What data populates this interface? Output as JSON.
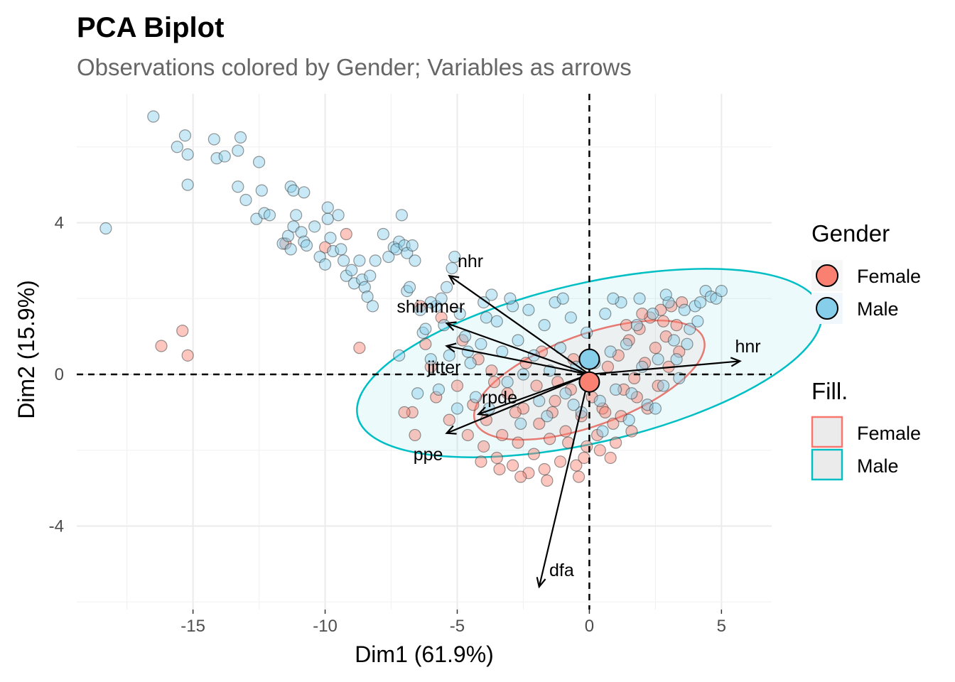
{
  "chart_data": {
    "type": "scatter",
    "title": "PCA Biplot",
    "subtitle": "Observations colored by Gender; Variables as arrows",
    "xlabel": "Dim1 (61.9%)",
    "ylabel": "Dim2 (15.9%)",
    "xlim": [
      -19.4,
      6.9
    ],
    "ylim": [
      -6.2,
      7.4
    ],
    "x_ticks": [
      -15,
      -10,
      -5,
      0,
      5
    ],
    "x_tick_labels": [
      "-15",
      "-10",
      "-5",
      "0",
      "5"
    ],
    "y_ticks": [
      -4,
      0,
      4
    ],
    "y_tick_labels": [
      "-4",
      "0",
      "4"
    ],
    "grid": true,
    "reference_lines": {
      "x": 0,
      "y": 0,
      "style": "dashed"
    },
    "colors": {
      "Female": "#F8766D",
      "Male": "#00BFC4",
      "Female_point": "#FA8072",
      "Male_point": "#87CEEB"
    },
    "series": [
      {
        "name": "Female",
        "points": [
          [
            -16.2,
            0.75
          ],
          [
            -15.4,
            1.15
          ],
          [
            -15.2,
            0.5
          ],
          [
            -11.5,
            3.45
          ],
          [
            -10.0,
            3.35
          ],
          [
            -9.2,
            3.7
          ],
          [
            -8.7,
            0.7
          ],
          [
            -6.7,
            -1.0
          ],
          [
            -6.4,
            1.8
          ],
          [
            -6.2,
            0.8
          ],
          [
            -6.0,
            0.2
          ],
          [
            -5.8,
            -0.6
          ],
          [
            -5.6,
            1.5
          ],
          [
            -5.3,
            -1.2
          ],
          [
            -5.0,
            -0.3
          ],
          [
            -4.8,
            0.9
          ],
          [
            -4.6,
            -1.6
          ],
          [
            -4.4,
            -0.8
          ],
          [
            -4.2,
            0.4
          ],
          [
            -4.0,
            -1.9
          ],
          [
            -3.9,
            -1.2
          ],
          [
            -3.7,
            0.1
          ],
          [
            -3.5,
            -2.2
          ],
          [
            -3.3,
            -1.6
          ],
          [
            -3.1,
            -0.5
          ],
          [
            -2.9,
            -2.4
          ],
          [
            -2.7,
            -1.8
          ],
          [
            -2.5,
            -0.9
          ],
          [
            -2.3,
            -2.6
          ],
          [
            -2.1,
            -2.1
          ],
          [
            -1.9,
            -1.3
          ],
          [
            -1.7,
            -2.5
          ],
          [
            -1.5,
            -1.7
          ],
          [
            -1.3,
            -0.7
          ],
          [
            -1.1,
            -2.3
          ],
          [
            -0.9,
            -1.5
          ],
          [
            -0.7,
            -0.4
          ],
          [
            -0.5,
            -2.4
          ],
          [
            -0.3,
            -1.1
          ],
          [
            -0.1,
            -1.9
          ],
          [
            0.1,
            -0.6
          ],
          [
            0.3,
            -1.6
          ],
          [
            0.5,
            -0.9
          ],
          [
            0.7,
            0.2
          ],
          [
            0.9,
            -1.3
          ],
          [
            1.1,
            0.5
          ],
          [
            1.3,
            -0.4
          ],
          [
            1.5,
            0.9
          ],
          [
            1.7,
            -0.1
          ],
          [
            1.9,
            1.2
          ],
          [
            2.1,
            0.3
          ],
          [
            2.3,
            1.5
          ],
          [
            2.5,
            0.7
          ],
          [
            2.7,
            1.7
          ],
          [
            2.9,
            1.0
          ],
          [
            3.1,
            1.8
          ],
          [
            3.3,
            1.3
          ],
          [
            3.5,
            1.9
          ],
          [
            -6.6,
            -1.6
          ],
          [
            -7.0,
            -1.0
          ],
          [
            -2.4,
            0.3
          ],
          [
            -1.8,
            0.6
          ],
          [
            -1.2,
            -0.2
          ],
          [
            -0.6,
            0.4
          ],
          [
            0.0,
            -0.3
          ],
          [
            0.6,
            -1.0
          ],
          [
            1.2,
            -1.1
          ],
          [
            1.8,
            -0.6
          ],
          [
            -3.6,
            -0.2
          ],
          [
            -2.8,
            -1.0
          ],
          [
            -2.0,
            -0.3
          ],
          [
            -1.4,
            -1.0
          ],
          [
            -0.8,
            -1.8
          ],
          [
            -0.2,
            -2.2
          ],
          [
            0.4,
            -2.0
          ],
          [
            1.0,
            -1.8
          ],
          [
            1.6,
            -1.5
          ],
          [
            2.2,
            -0.9
          ],
          [
            -4.1,
            -2.3
          ],
          [
            -3.4,
            -2.5
          ],
          [
            -2.6,
            -2.7
          ],
          [
            -1.6,
            -2.8
          ],
          [
            -0.4,
            -2.7
          ],
          [
            0.8,
            -2.2
          ],
          [
            2.6,
            -0.3
          ],
          [
            3.0,
            0.2
          ],
          [
            3.4,
            0.6
          ],
          [
            2.8,
            1.4
          ],
          [
            2.0,
            1.6
          ],
          [
            1.4,
            1.3
          ]
        ]
      },
      {
        "name": "Male",
        "points": [
          [
            -18.3,
            3.85
          ],
          [
            -16.5,
            6.8
          ],
          [
            -15.6,
            6.0
          ],
          [
            -15.3,
            6.3
          ],
          [
            -15.2,
            5.8
          ],
          [
            -15.2,
            5.0
          ],
          [
            -14.2,
            6.2
          ],
          [
            -14.1,
            5.7
          ],
          [
            -13.8,
            5.75
          ],
          [
            -13.2,
            6.25
          ],
          [
            -13.3,
            5.9
          ],
          [
            -13.3,
            4.95
          ],
          [
            -13.0,
            4.6
          ],
          [
            -12.5,
            5.6
          ],
          [
            -12.4,
            4.85
          ],
          [
            -12.6,
            4.1
          ],
          [
            -12.3,
            4.25
          ],
          [
            -12.1,
            4.2
          ],
          [
            -11.6,
            3.45
          ],
          [
            -11.4,
            3.65
          ],
          [
            -11.3,
            3.3
          ],
          [
            -11.2,
            3.9
          ],
          [
            -11.1,
            4.2
          ],
          [
            -11.3,
            4.95
          ],
          [
            -11.2,
            4.85
          ],
          [
            -10.9,
            3.75
          ],
          [
            -10.8,
            3.5
          ],
          [
            -10.7,
            3.4
          ],
          [
            -10.8,
            4.8
          ],
          [
            -10.4,
            3.9
          ],
          [
            -10.2,
            3.1
          ],
          [
            -10.0,
            2.9
          ],
          [
            -9.9,
            4.1
          ],
          [
            -9.8,
            3.6
          ],
          [
            -9.7,
            3.25
          ],
          [
            -9.9,
            4.4
          ],
          [
            -9.5,
            4.2
          ],
          [
            -9.4,
            3.3
          ],
          [
            -9.3,
            3.0
          ],
          [
            -9.2,
            2.6
          ],
          [
            -9.0,
            2.75
          ],
          [
            -8.9,
            2.4
          ],
          [
            -8.7,
            3.0
          ],
          [
            -8.6,
            2.5
          ],
          [
            -8.5,
            2.3
          ],
          [
            -8.4,
            2.05
          ],
          [
            -8.3,
            2.6
          ],
          [
            -8.2,
            1.8
          ],
          [
            -8.1,
            3.0
          ],
          [
            -7.8,
            3.7
          ],
          [
            -7.6,
            3.1
          ],
          [
            -7.4,
            3.35
          ],
          [
            -7.2,
            3.5
          ],
          [
            -7.3,
            3.3
          ],
          [
            -7.0,
            3.4
          ],
          [
            -7.1,
            4.2
          ],
          [
            -6.9,
            3.2
          ],
          [
            -6.7,
            3.4
          ],
          [
            -6.6,
            3.0
          ],
          [
            -6.9,
            2.2
          ],
          [
            -6.8,
            2.3
          ],
          [
            -6.4,
            1.7
          ],
          [
            -6.3,
            1.1
          ],
          [
            -6.2,
            1.2
          ],
          [
            -6.0,
            0.4
          ],
          [
            -5.8,
            1.8
          ],
          [
            -5.6,
            2.0
          ],
          [
            -5.4,
            2.3
          ],
          [
            -5.2,
            2.8
          ],
          [
            -5.1,
            3.1
          ],
          [
            -4.9,
            1.6
          ],
          [
            -4.7,
            1.0
          ],
          [
            -4.5,
            0.3
          ],
          [
            -4.3,
            -0.6
          ],
          [
            -4.1,
            0.8
          ],
          [
            -3.9,
            1.5
          ],
          [
            -3.7,
            2.1
          ],
          [
            -3.5,
            1.4
          ],
          [
            -3.3,
            0.6
          ],
          [
            -3.1,
            -0.2
          ],
          [
            -2.9,
            1.8
          ],
          [
            -2.7,
            0.9
          ],
          [
            -2.5,
            0.0
          ],
          [
            -2.3,
            1.7
          ],
          [
            -2.1,
            0.5
          ],
          [
            -1.9,
            -0.7
          ],
          [
            -1.7,
            1.3
          ],
          [
            -1.5,
            0.1
          ],
          [
            -1.3,
            1.9
          ],
          [
            -1.1,
            0.7
          ],
          [
            -0.9,
            -0.5
          ],
          [
            -0.7,
            1.5
          ],
          [
            -0.5,
            0.2
          ],
          [
            -0.3,
            -1.0
          ],
          [
            -0.1,
            1.1
          ],
          [
            0.2,
            0.3
          ],
          [
            0.4,
            -0.7
          ],
          [
            0.6,
            1.6
          ],
          [
            0.8,
            0.6
          ],
          [
            1.0,
            -0.4
          ],
          [
            1.2,
            1.9
          ],
          [
            1.4,
            0.8
          ],
          [
            1.6,
            -0.5
          ],
          [
            1.8,
            1.3
          ],
          [
            2.0,
            0.2
          ],
          [
            2.2,
            -0.8
          ],
          [
            2.4,
            1.6
          ],
          [
            2.6,
            0.4
          ],
          [
            2.8,
            -0.3
          ],
          [
            3.0,
            1.9
          ],
          [
            3.2,
            0.9
          ],
          [
            3.4,
            -0.1
          ],
          [
            3.6,
            1.7
          ],
          [
            3.8,
            1.2
          ],
          [
            4.0,
            1.8
          ],
          [
            4.2,
            1.9
          ],
          [
            4.4,
            2.2
          ],
          [
            4.6,
            2.05
          ],
          [
            4.8,
            2.0
          ],
          [
            5.0,
            2.2
          ],
          [
            -7.2,
            0.5
          ],
          [
            -6.5,
            -0.5
          ],
          [
            -5.7,
            -0.4
          ],
          [
            -5.0,
            -0.9
          ],
          [
            -4.6,
            0.6
          ],
          [
            -3.8,
            -0.9
          ],
          [
            -2.6,
            -1.3
          ],
          [
            -1.6,
            -1.1
          ],
          [
            -0.6,
            -0.8
          ],
          [
            0.5,
            -1.5
          ],
          [
            1.5,
            -1.2
          ],
          [
            2.5,
            -0.9
          ],
          [
            -6.0,
            1.9
          ],
          [
            -5.5,
            1.3
          ],
          [
            -5.3,
            0.5
          ],
          [
            -4.0,
            1.9
          ],
          [
            -3.0,
            2.0
          ],
          [
            0.9,
            2.0
          ],
          [
            1.9,
            2.0
          ],
          [
            2.9,
            2.1
          ],
          [
            3.3,
            0.4
          ],
          [
            3.7,
            0.8
          ],
          [
            4.1,
            1.4
          ],
          [
            -1.0,
            2.0
          ]
        ]
      }
    ],
    "centroids": [
      {
        "name": "Female",
        "x": 0.0,
        "y": -0.2
      },
      {
        "name": "Male",
        "x": 0.0,
        "y": 0.4
      }
    ],
    "ellipses": [
      {
        "name": "Female",
        "cx": 0.0,
        "cy": -0.15,
        "rx": 4.6,
        "ry": 1.2,
        "angle": 20
      },
      {
        "name": "Male",
        "cx": 0.0,
        "cy": 0.3,
        "rx": 9.0,
        "ry": 2.1,
        "angle": 13
      }
    ],
    "arrows": [
      {
        "name": "nhr",
        "x": -5.3,
        "y": 2.6,
        "label_x": -4.5,
        "label_y": 3.0
      },
      {
        "name": "shimmer",
        "x": -5.4,
        "y": 1.35,
        "label_x": -6.0,
        "label_y": 1.8
      },
      {
        "name": "jitter",
        "x": -5.4,
        "y": 0.75,
        "label_x": -5.5,
        "label_y": 0.2
      },
      {
        "name": "rpde",
        "x": -4.2,
        "y": -1.05,
        "label_x": -3.4,
        "label_y": -0.6
      },
      {
        "name": "ppe",
        "x": -5.4,
        "y": -1.55,
        "label_x": -6.1,
        "label_y": -2.1
      },
      {
        "name": "hnr",
        "x": 5.7,
        "y": 0.35,
        "label_x": 6.0,
        "label_y": 0.75
      },
      {
        "name": "dfa",
        "x": -1.9,
        "y": -5.6,
        "label_x": -1.05,
        "label_y": -5.15
      }
    ],
    "legend": {
      "placement": "right",
      "groups": [
        {
          "title": "Gender",
          "entries": [
            {
              "label": "Female",
              "color": "#FA8072"
            },
            {
              "label": "Male",
              "color": "#87CEEB"
            }
          ]
        },
        {
          "title": "Fill.",
          "entries": [
            {
              "label": "Female",
              "color": "#F8766D"
            },
            {
              "label": "Male",
              "color": "#00BFC4"
            }
          ]
        }
      ]
    }
  }
}
